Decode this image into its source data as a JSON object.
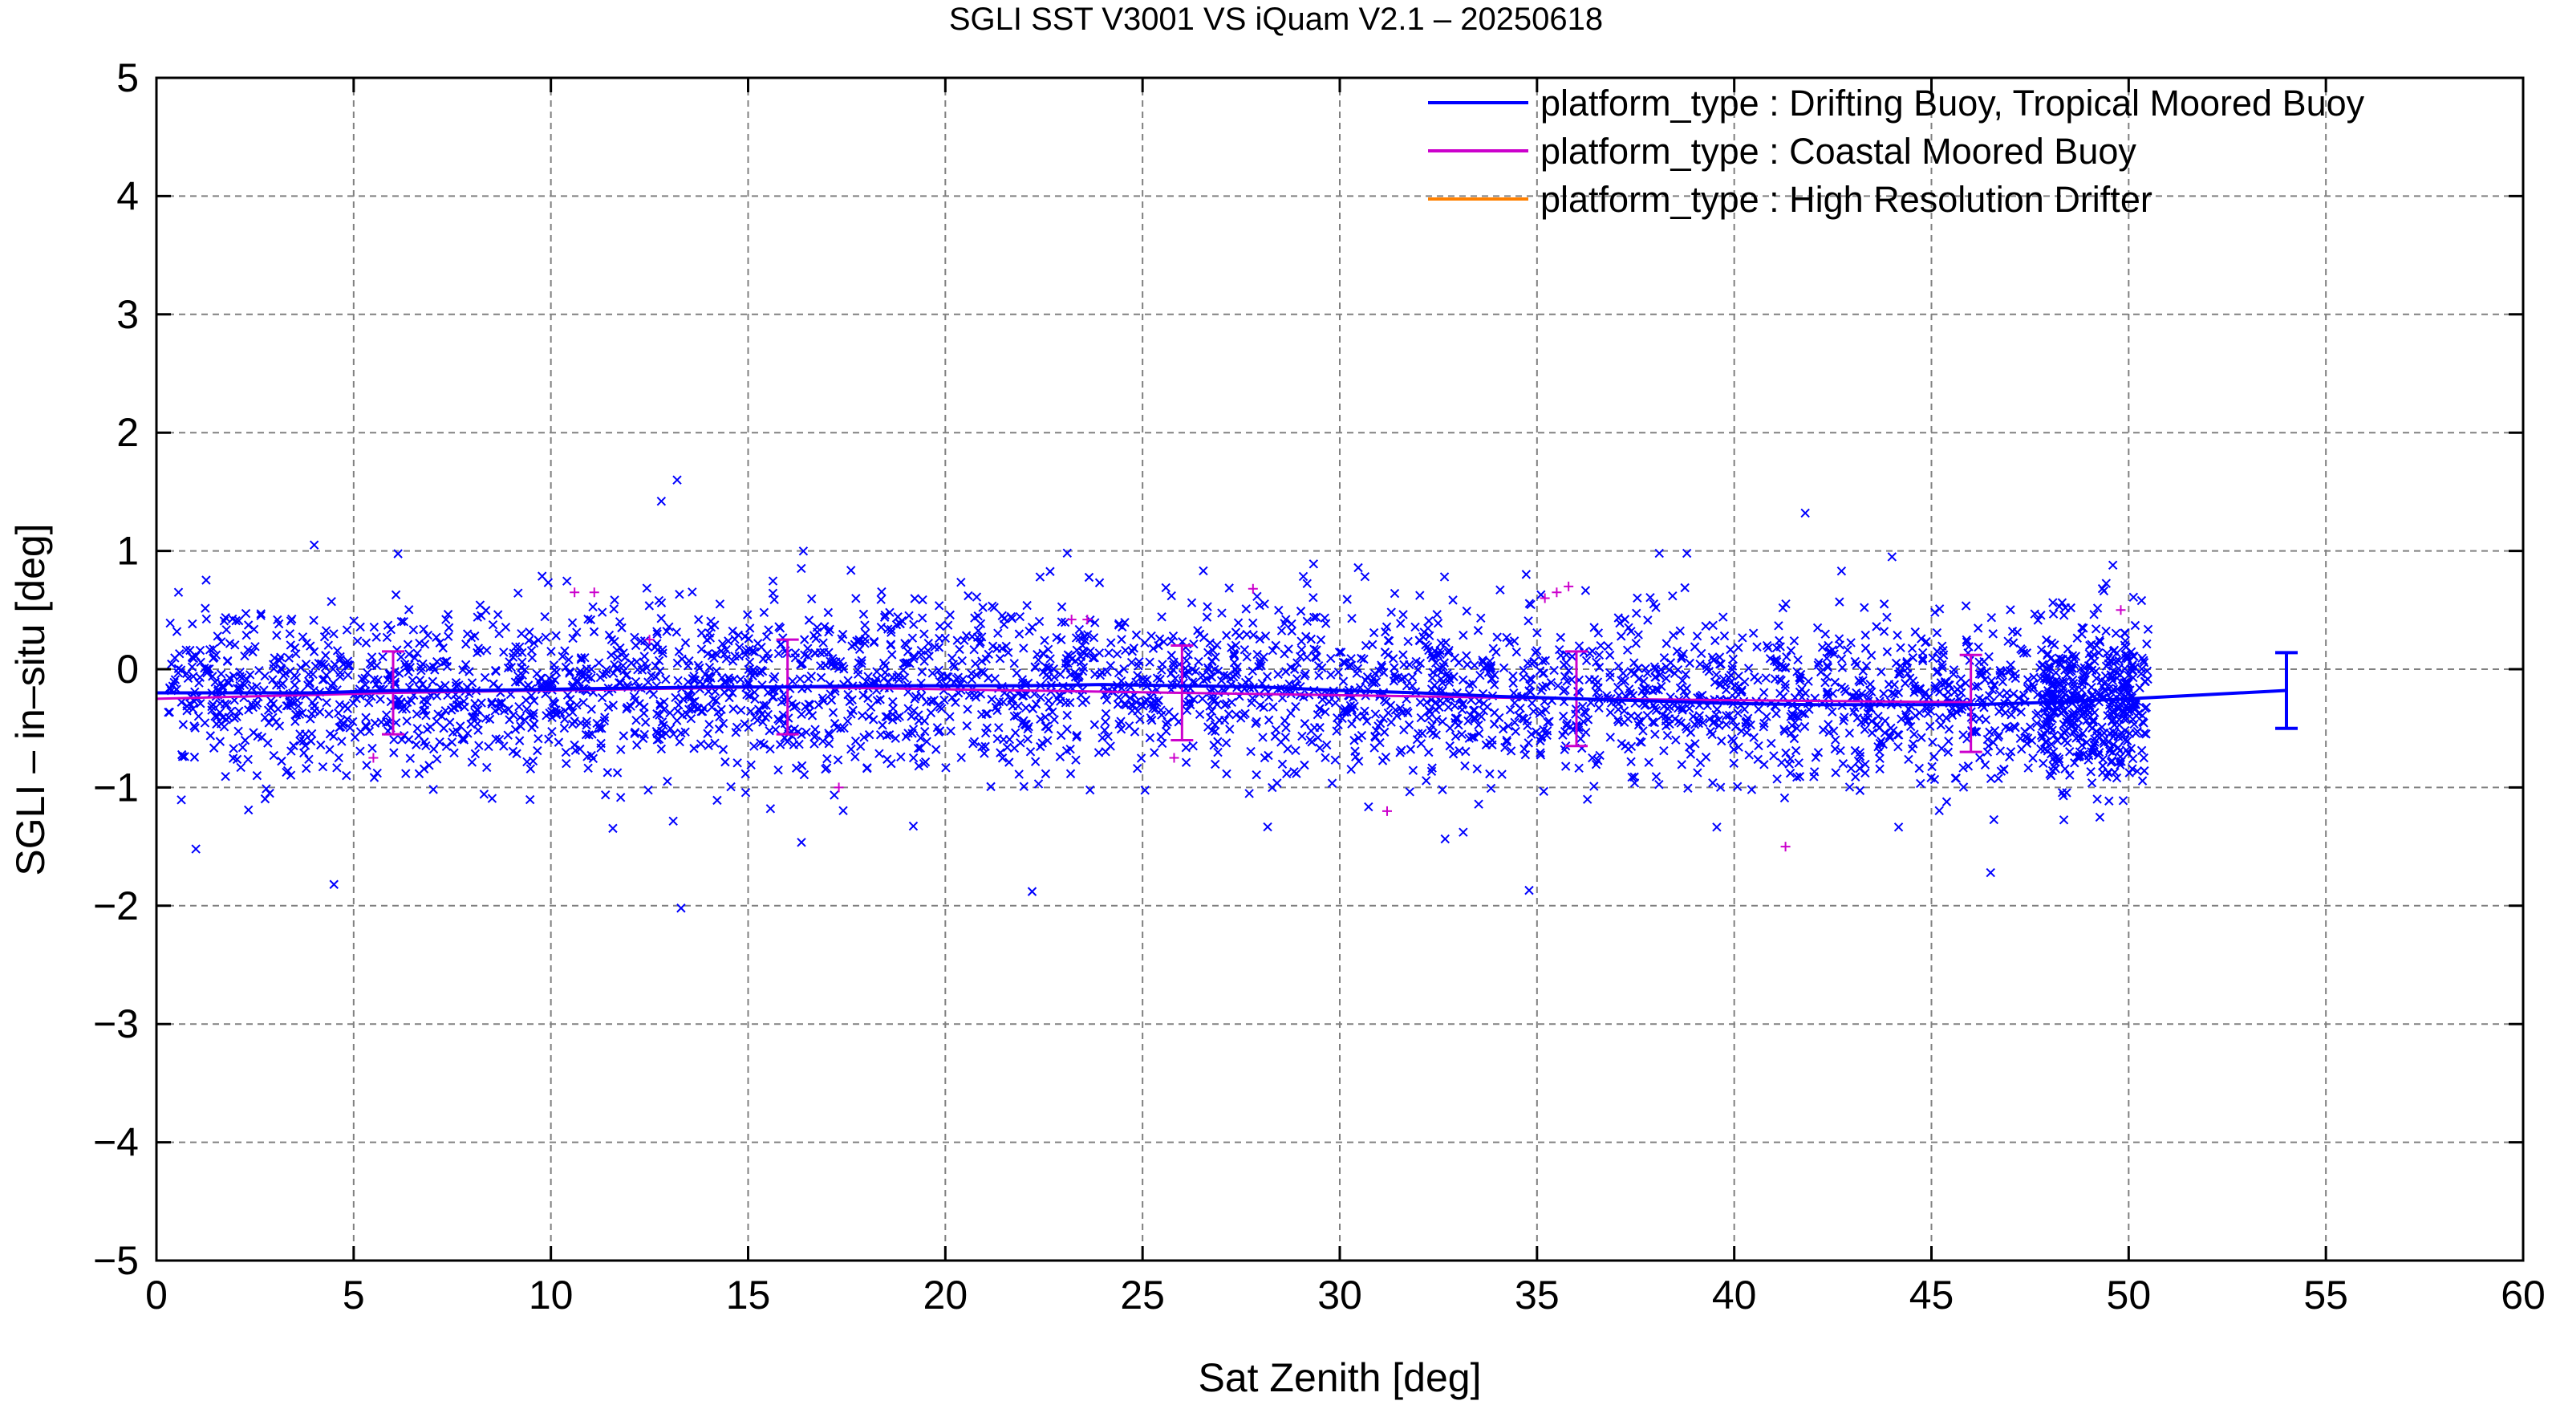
{
  "chart_data": {
    "type": "scatter",
    "title": "SGLI SST V3001 VS iQuam V2.1  – 20250618",
    "xlabel": "Sat Zenith [deg]",
    "ylabel": "SGLI – in–situ [deg]",
    "xlim": [
      0,
      60
    ],
    "ylim": [
      -5,
      5
    ],
    "x_ticks": [
      "0",
      "5",
      "10",
      "15",
      "20",
      "25",
      "30",
      "35",
      "40",
      "45",
      "50",
      "55",
      "60"
    ],
    "y_ticks": [
      "−5",
      "−4",
      "−3",
      "−2",
      "−1",
      "0",
      "1",
      "2",
      "3",
      "4",
      "5"
    ],
    "grid": true,
    "legend_position": "top-right",
    "series": [
      {
        "name": "platform_type : Drifting Buoy, Tropical Moored Buoy",
        "color": "#0000ff",
        "marker": "x",
        "mean_line": [
          {
            "x": 0,
            "y": -0.2
          },
          {
            "x": 2,
            "y": -0.2
          },
          {
            "x": 4,
            "y": -0.2
          },
          {
            "x": 6,
            "y": -0.18
          },
          {
            "x": 8,
            "y": -0.18
          },
          {
            "x": 10,
            "y": -0.17
          },
          {
            "x": 12,
            "y": -0.16
          },
          {
            "x": 14,
            "y": -0.15
          },
          {
            "x": 16,
            "y": -0.15
          },
          {
            "x": 18,
            "y": -0.14
          },
          {
            "x": 20,
            "y": -0.14
          },
          {
            "x": 22,
            "y": -0.14
          },
          {
            "x": 24,
            "y": -0.13
          },
          {
            "x": 26,
            "y": -0.14
          },
          {
            "x": 28,
            "y": -0.15
          },
          {
            "x": 30,
            "y": -0.18
          },
          {
            "x": 32,
            "y": -0.2
          },
          {
            "x": 34,
            "y": -0.23
          },
          {
            "x": 36,
            "y": -0.25
          },
          {
            "x": 38,
            "y": -0.27
          },
          {
            "x": 40,
            "y": -0.29
          },
          {
            "x": 42,
            "y": -0.3
          },
          {
            "x": 44,
            "y": -0.3
          },
          {
            "x": 46,
            "y": -0.3
          },
          {
            "x": 48,
            "y": -0.28
          },
          {
            "x": 50,
            "y": -0.25
          },
          {
            "x": 54,
            "y": -0.18
          }
        ],
        "error_bars": [
          {
            "x": 54,
            "low": -0.5,
            "high": 0.14
          }
        ]
      },
      {
        "name": "platform_type : Coastal Moored Buoy",
        "color": "#cc00cc",
        "marker": "+",
        "mean_line": [
          {
            "x": 0,
            "y": -0.25
          },
          {
            "x": 6,
            "y": -0.2
          },
          {
            "x": 16,
            "y": -0.15
          },
          {
            "x": 26,
            "y": -0.2
          },
          {
            "x": 36,
            "y": -0.25
          },
          {
            "x": 46,
            "y": -0.28
          }
        ],
        "error_bars": [
          {
            "x": 6,
            "low": -0.55,
            "high": 0.15
          },
          {
            "x": 16,
            "low": -0.55,
            "high": 0.25
          },
          {
            "x": 26,
            "low": -0.6,
            "high": 0.2
          },
          {
            "x": 36,
            "low": -0.65,
            "high": 0.15
          },
          {
            "x": 46,
            "low": -0.7,
            "high": 0.12
          }
        ],
        "points": [
          {
            "x": 10.6,
            "y": 0.65
          },
          {
            "x": 11.1,
            "y": 0.65
          },
          {
            "x": 12.5,
            "y": 0.25
          },
          {
            "x": 23.2,
            "y": 0.42
          },
          {
            "x": 23.6,
            "y": 0.42
          },
          {
            "x": 27.8,
            "y": 0.68
          },
          {
            "x": 35.2,
            "y": 0.6
          },
          {
            "x": 35.5,
            "y": 0.65
          },
          {
            "x": 35.8,
            "y": 0.7
          },
          {
            "x": 41.3,
            "y": -1.5
          },
          {
            "x": 31.2,
            "y": -1.2
          },
          {
            "x": 49.8,
            "y": 0.5
          },
          {
            "x": 5.5,
            "y": -0.75
          },
          {
            "x": 17.3,
            "y": -1.0
          },
          {
            "x": 25.8,
            "y": -0.75
          }
        ]
      },
      {
        "name": "platform_type : High Resolution Drifter",
        "color": "#ff8000",
        "marker": "x"
      }
    ],
    "scatter_summary": {
      "x_range": [
        0.3,
        50.5
      ],
      "y_center": -0.2,
      "y_spread": 0.35,
      "outliers": [
        {
          "x": 12.8,
          "y": 1.42
        },
        {
          "x": 13.2,
          "y": 1.6
        },
        {
          "x": 4.0,
          "y": 1.05
        },
        {
          "x": 41.8,
          "y": 1.32
        },
        {
          "x": 13.3,
          "y": -2.02
        },
        {
          "x": 4.5,
          "y": -1.82
        },
        {
          "x": 22.2,
          "y": -1.88
        },
        {
          "x": 34.8,
          "y": -1.87
        },
        {
          "x": 46.5,
          "y": -1.72
        },
        {
          "x": 1.0,
          "y": -1.52
        },
        {
          "x": 49.6,
          "y": 0.88
        },
        {
          "x": 38.8,
          "y": 0.98
        },
        {
          "x": 38.1,
          "y": 0.98
        },
        {
          "x": 44.0,
          "y": 0.95
        }
      ]
    }
  }
}
